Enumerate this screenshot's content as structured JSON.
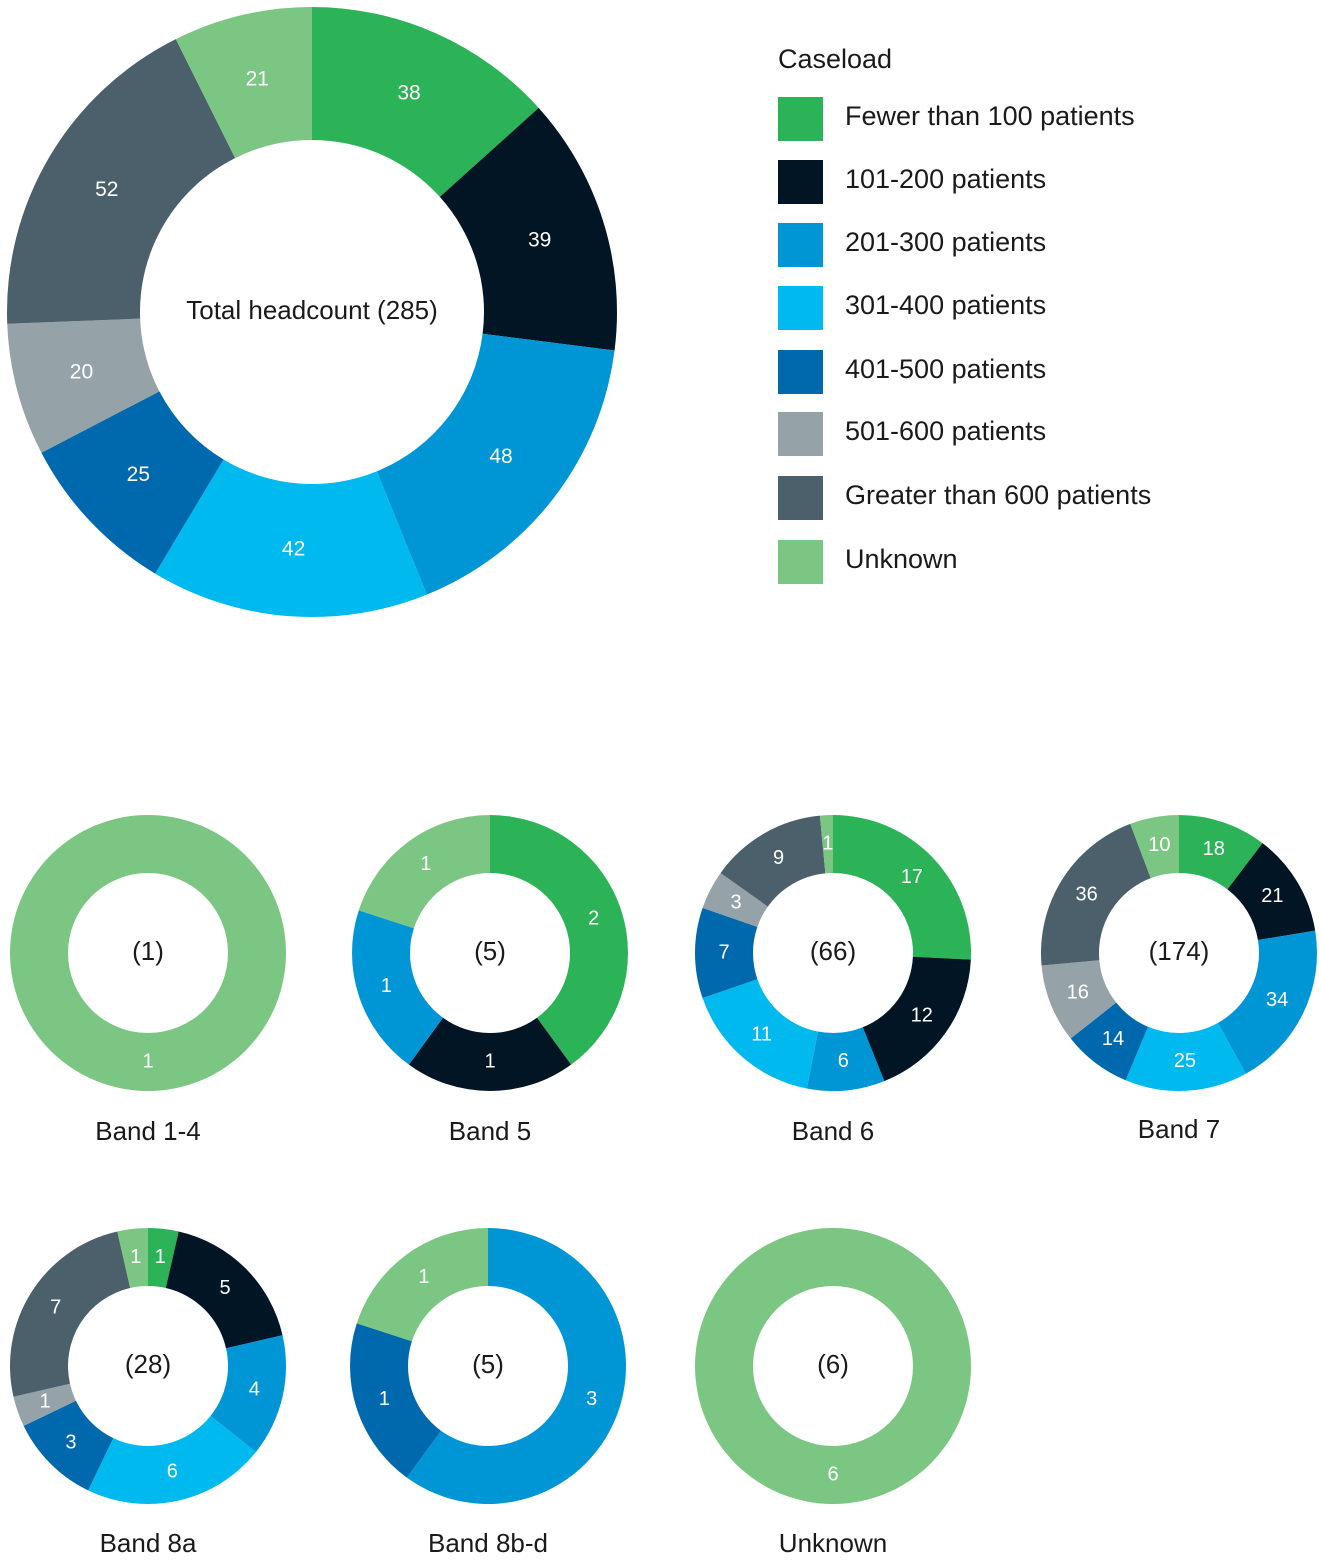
{
  "chart_data": [
    {
      "type": "donut",
      "legend_title": "Caseload",
      "center_label": "Total headcount (285)",
      "categories": [
        "Fewer than 100 patients",
        "101-200 patients",
        "201-300 patients",
        "301-400 patients",
        "401-500 patients",
        "501-600 patients",
        "Greater than 600 patients",
        "Unknown"
      ],
      "colors": [
        "#2db357",
        "#011524",
        "#0096d6",
        "#00b9ee",
        "#0068ad",
        "#95a3a9",
        "#4b606b",
        "#7bc683"
      ],
      "values": [
        38,
        39,
        48,
        42,
        25,
        20,
        52,
        21
      ]
    },
    {
      "type": "donut",
      "title": "Band 1-4",
      "center_label": "(1)",
      "values": [
        0,
        0,
        0,
        0,
        0,
        0,
        0,
        1
      ]
    },
    {
      "type": "donut",
      "title": "Band 5",
      "center_label": "(5)",
      "values": [
        2,
        1,
        1,
        0,
        0,
        0,
        0,
        1
      ]
    },
    {
      "type": "donut",
      "title": "Band 6",
      "center_label": "(66)",
      "values": [
        17,
        12,
        6,
        11,
        7,
        3,
        9,
        1
      ]
    },
    {
      "type": "donut",
      "title": "Band 7",
      "center_label": "(174)",
      "values": [
        18,
        21,
        34,
        25,
        14,
        16,
        36,
        10
      ]
    },
    {
      "type": "donut",
      "title": "Band 8a",
      "center_label": "(28)",
      "values": [
        1,
        5,
        4,
        6,
        3,
        1,
        7,
        1
      ]
    },
    {
      "type": "donut",
      "title": "Band 8b-d",
      "center_label": "(5)",
      "values": [
        0,
        0,
        3,
        0,
        1,
        0,
        0,
        1
      ]
    },
    {
      "type": "donut",
      "title": "Unknown",
      "center_label": "(6)",
      "values": [
        0,
        0,
        0,
        0,
        0,
        0,
        0,
        6
      ]
    }
  ]
}
